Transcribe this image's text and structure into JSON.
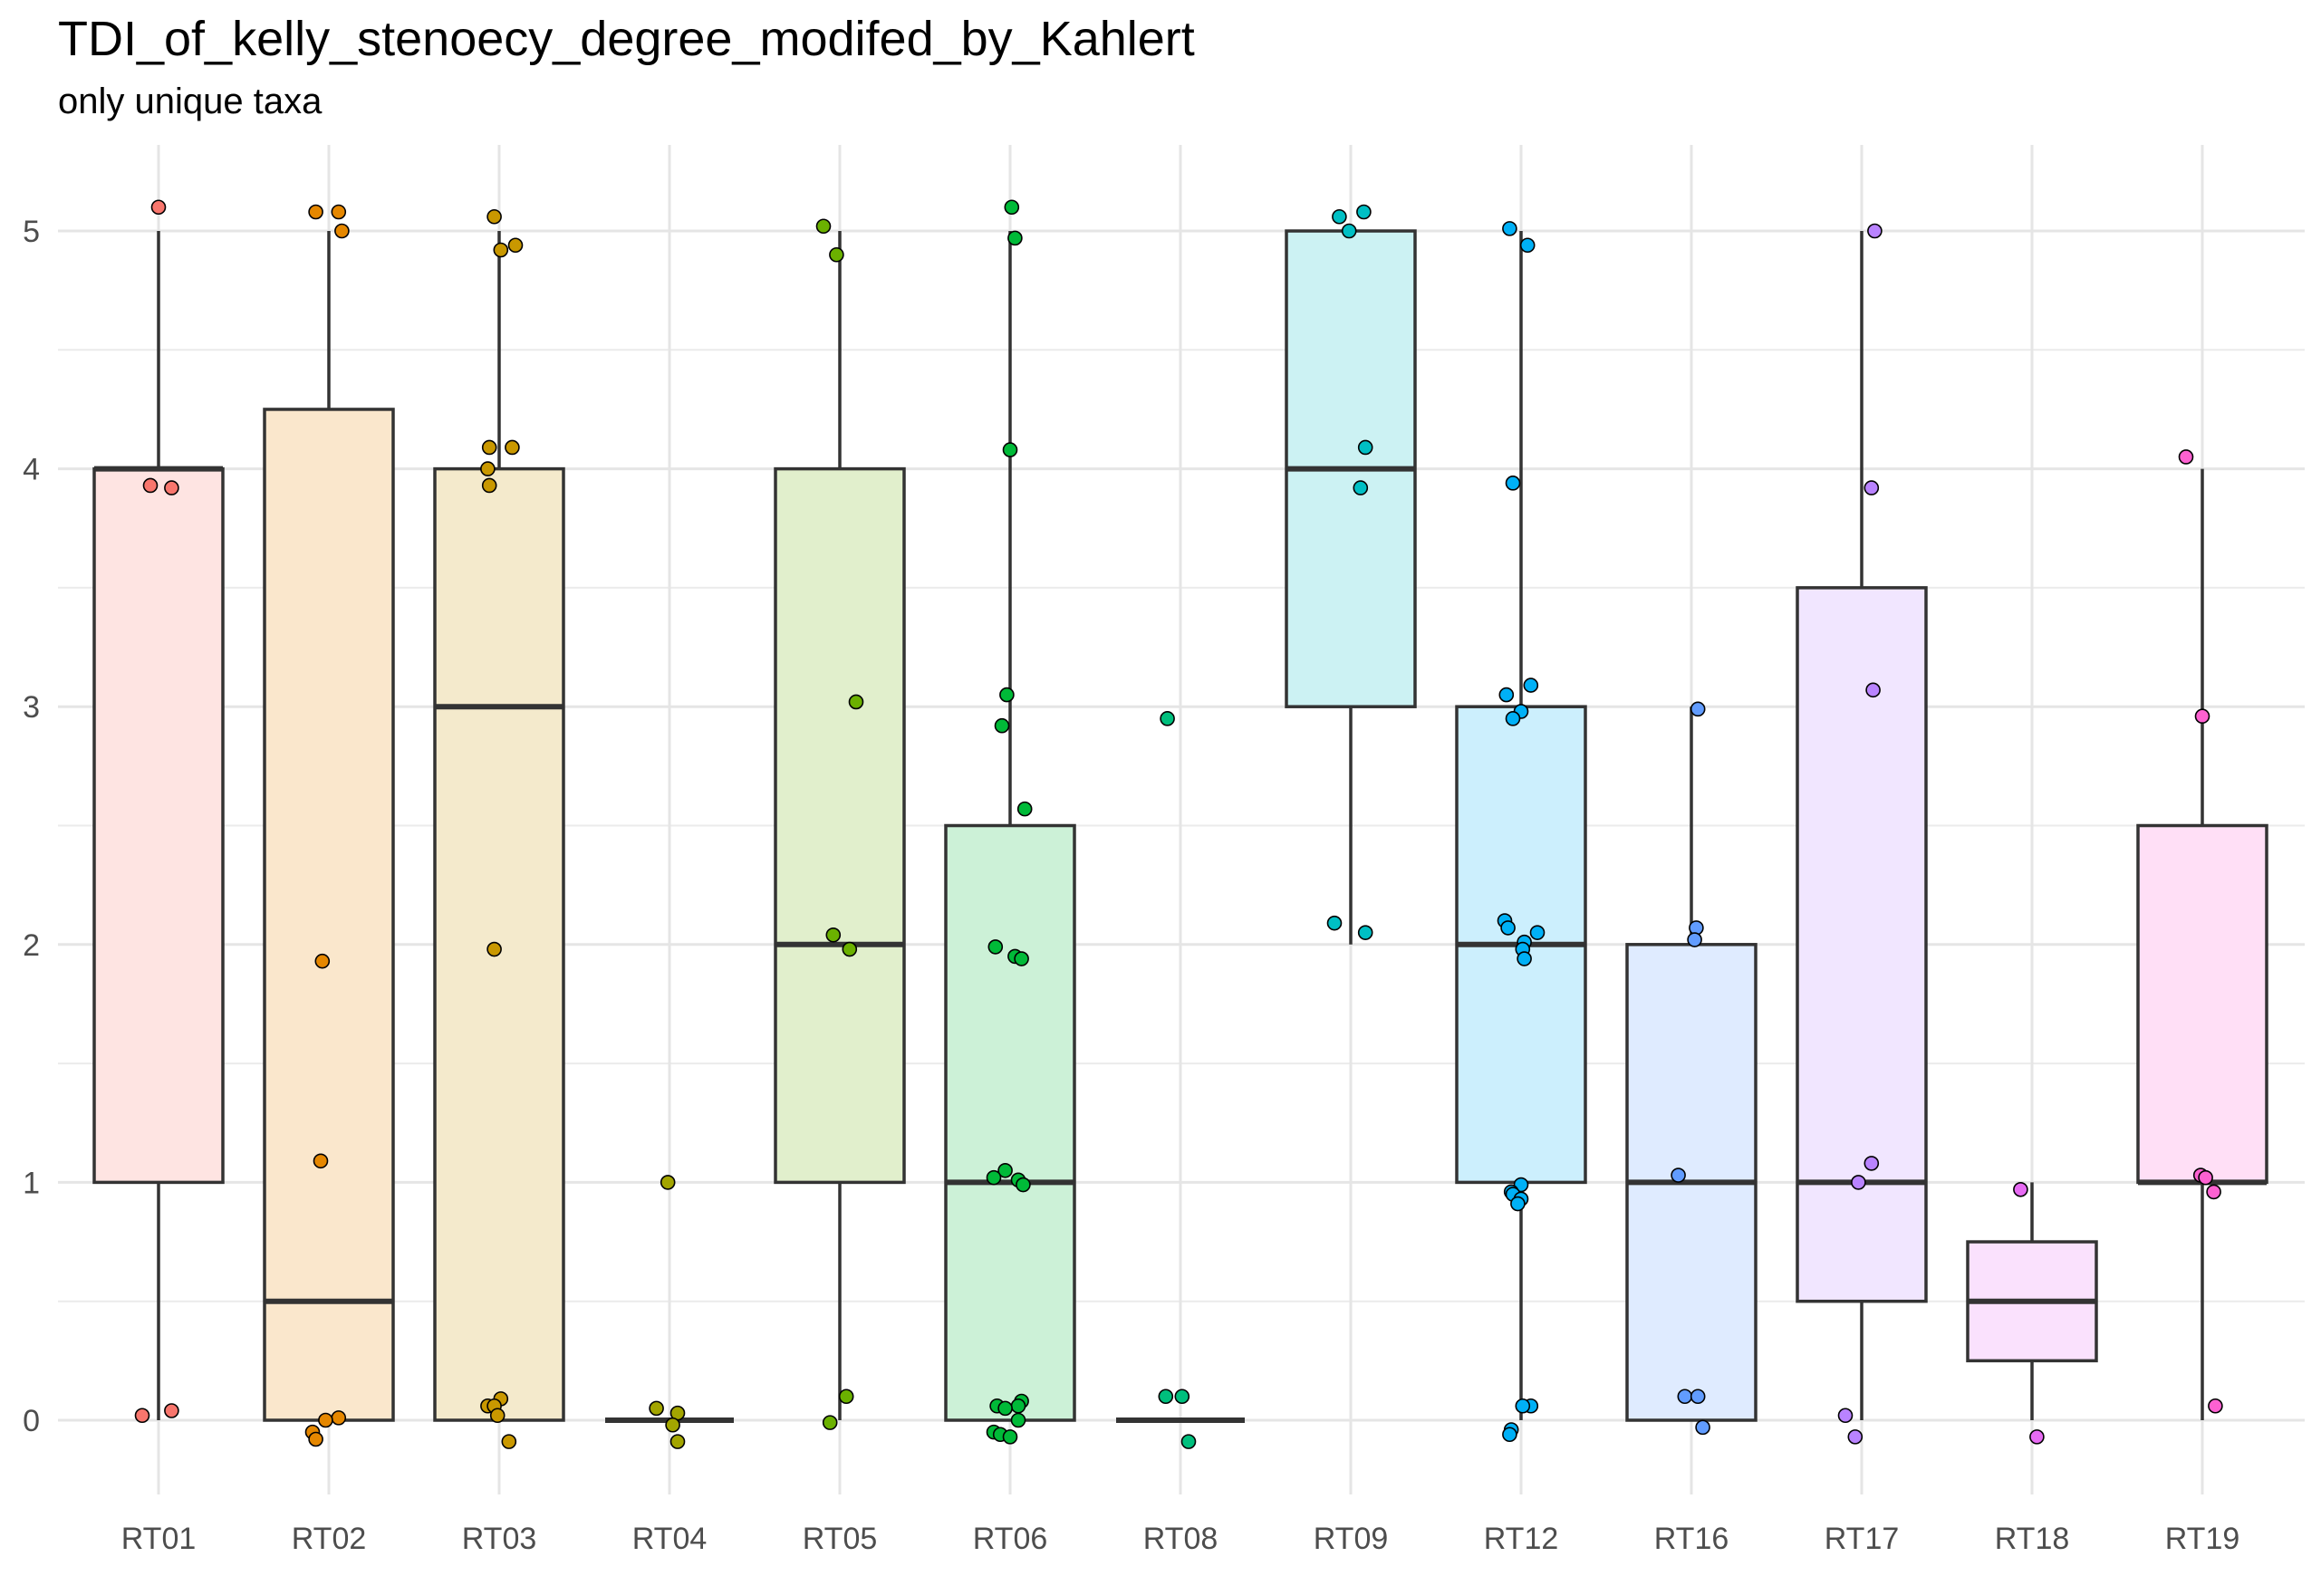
{
  "title": "TDI_of_kelly_stenoecy_degree_modifed_by_Kahlert",
  "subtitle": "only unique taxa",
  "chart_data": {
    "type": "box",
    "xlabel": "",
    "ylabel": "",
    "ylim": [
      -0.35,
      5.35
    ],
    "yticks": [
      "0",
      "1",
      "2",
      "3",
      "4",
      "5"
    ],
    "grid": true,
    "legend": "none",
    "categories": [
      "RT01",
      "RT02",
      "RT03",
      "RT04",
      "RT05",
      "RT06",
      "RT08",
      "RT09",
      "RT12",
      "RT16",
      "RT17",
      "RT18",
      "RT19"
    ],
    "series": [
      {
        "category": "RT01",
        "color": "#F8766D",
        "q1": 1,
        "median": 4,
        "q3": 4,
        "whisker_low": 0,
        "whisker_high": 5,
        "points": [
          [
            5.1,
            0.0
          ],
          [
            3.93,
            -0.05
          ],
          [
            3.92,
            0.08
          ],
          [
            0.02,
            -0.1
          ],
          [
            0.04,
            0.08
          ]
        ]
      },
      {
        "category": "RT02",
        "color": "#E58700",
        "q1": 0,
        "median": 0.5,
        "q3": 4.25,
        "whisker_low": 0,
        "whisker_high": 5,
        "points": [
          [
            5.08,
            -0.08
          ],
          [
            5.08,
            0.06
          ],
          [
            5.0,
            0.08
          ],
          [
            1.93,
            -0.04
          ],
          [
            1.09,
            -0.05
          ],
          [
            0.01,
            0.06
          ],
          [
            0.0,
            -0.02
          ],
          [
            -0.05,
            -0.1
          ],
          [
            -0.08,
            -0.08
          ]
        ]
      },
      {
        "category": "RT03",
        "color": "#C99800",
        "q1": 0,
        "median": 3,
        "q3": 4,
        "whisker_low": 0,
        "whisker_high": 5,
        "points": [
          [
            5.06,
            -0.03
          ],
          [
            4.94,
            0.1
          ],
          [
            4.92,
            0.01
          ],
          [
            4.09,
            -0.06
          ],
          [
            4.09,
            0.08
          ],
          [
            4.0,
            -0.07
          ],
          [
            3.93,
            -0.06
          ],
          [
            1.98,
            -0.03
          ],
          [
            0.09,
            0.01
          ],
          [
            0.06,
            -0.07
          ],
          [
            0.06,
            -0.03
          ],
          [
            0.02,
            -0.01
          ],
          [
            -0.09,
            0.06
          ]
        ]
      },
      {
        "category": "RT04",
        "color": "#A3A500",
        "q1": 0,
        "median": 0,
        "q3": 0,
        "whisker_low": 0,
        "whisker_high": 0,
        "points": [
          [
            1.0,
            -0.01
          ],
          [
            0.05,
            -0.08
          ],
          [
            0.03,
            0.05
          ],
          [
            -0.02,
            0.02
          ],
          [
            -0.09,
            0.05
          ]
        ]
      },
      {
        "category": "RT05",
        "color": "#6BB100",
        "q1": 1,
        "median": 2,
        "q3": 4,
        "whisker_low": 0,
        "whisker_high": 5,
        "points": [
          [
            5.02,
            -0.1
          ],
          [
            4.9,
            -0.02
          ],
          [
            3.02,
            0.1
          ],
          [
            2.04,
            -0.04
          ],
          [
            1.98,
            0.06
          ],
          [
            0.1,
            0.04
          ],
          [
            -0.01,
            -0.06
          ]
        ]
      },
      {
        "category": "RT06",
        "color": "#00BA38",
        "q1": 0,
        "median": 1,
        "q3": 2.5,
        "whisker_low": 0,
        "whisker_high": 5,
        "points": [
          [
            5.1,
            0.01
          ],
          [
            4.97,
            0.03
          ],
          [
            4.08,
            0.0
          ],
          [
            3.05,
            -0.02
          ],
          [
            2.92,
            -0.05
          ],
          [
            2.57,
            0.09
          ],
          [
            1.99,
            -0.09
          ],
          [
            1.95,
            0.03
          ],
          [
            1.94,
            0.07
          ],
          [
            1.05,
            -0.03
          ],
          [
            1.02,
            -0.1
          ],
          [
            1.01,
            0.05
          ],
          [
            0.99,
            0.08
          ],
          [
            0.08,
            0.07
          ],
          [
            0.06,
            -0.08
          ],
          [
            0.06,
            0.05
          ],
          [
            0.05,
            -0.03
          ],
          [
            0.0,
            0.05
          ],
          [
            -0.05,
            -0.1
          ],
          [
            -0.06,
            -0.06
          ],
          [
            -0.07,
            0.0
          ]
        ]
      },
      {
        "category": "RT08",
        "color": "#00BF7D",
        "q1": 0,
        "median": 0,
        "q3": 0,
        "whisker_low": 0,
        "whisker_high": 0,
        "points": [
          [
            2.95,
            -0.08
          ],
          [
            0.1,
            -0.09
          ],
          [
            0.1,
            0.01
          ],
          [
            -0.09,
            0.05
          ]
        ]
      },
      {
        "category": "RT09",
        "color": "#00BFC4",
        "q1": 3,
        "median": 4,
        "q3": 5,
        "whisker_low": 2,
        "whisker_high": 5,
        "points": [
          [
            5.08,
            0.08
          ],
          [
            5.06,
            -0.07
          ],
          [
            5.0,
            -0.01
          ],
          [
            4.09,
            0.09
          ],
          [
            3.92,
            0.06
          ],
          [
            2.09,
            -0.1
          ],
          [
            2.05,
            0.09
          ]
        ]
      },
      {
        "category": "RT12",
        "color": "#00B0F6",
        "q1": 1,
        "median": 2,
        "q3": 3,
        "whisker_low": 0,
        "whisker_high": 5,
        "points": [
          [
            5.01,
            -0.07
          ],
          [
            4.94,
            0.04
          ],
          [
            3.94,
            -0.05
          ],
          [
            3.09,
            0.06
          ],
          [
            3.05,
            -0.09
          ],
          [
            2.98,
            0.0
          ],
          [
            2.95,
            -0.05
          ],
          [
            2.1,
            -0.1
          ],
          [
            2.07,
            -0.08
          ],
          [
            2.05,
            0.1
          ],
          [
            2.01,
            0.02
          ],
          [
            1.98,
            0.01
          ],
          [
            1.94,
            0.02
          ],
          [
            0.99,
            0.0
          ],
          [
            0.96,
            -0.06
          ],
          [
            0.95,
            -0.05
          ],
          [
            0.93,
            0.0
          ],
          [
            0.91,
            -0.02
          ],
          [
            0.06,
            0.06
          ],
          [
            0.06,
            0.01
          ],
          [
            -0.04,
            -0.06
          ],
          [
            -0.06,
            -0.07
          ]
        ]
      },
      {
        "category": "RT16",
        "color": "#619CFF",
        "q1": 0,
        "median": 1,
        "q3": 2,
        "whisker_low": 0,
        "whisker_high": 3,
        "points": [
          [
            2.99,
            0.04
          ],
          [
            2.07,
            0.03
          ],
          [
            2.02,
            0.02
          ],
          [
            1.03,
            -0.08
          ],
          [
            0.1,
            -0.04
          ],
          [
            0.1,
            0.04
          ],
          [
            -0.03,
            0.07
          ]
        ]
      },
      {
        "category": "RT17",
        "color": "#B983FF",
        "q1": 0.5,
        "median": 1,
        "q3": 3.5,
        "whisker_low": 0,
        "whisker_high": 5,
        "points": [
          [
            5.0,
            0.08
          ],
          [
            3.92,
            0.06
          ],
          [
            3.07,
            0.07
          ],
          [
            1.08,
            0.06
          ],
          [
            1.0,
            -0.02
          ],
          [
            0.02,
            -0.1
          ],
          [
            -0.07,
            -0.04
          ]
        ]
      },
      {
        "category": "RT18",
        "color": "#E76BF3",
        "q1": 0.25,
        "median": 0.5,
        "q3": 0.75,
        "whisker_low": 0,
        "whisker_high": 1,
        "points": [
          [
            0.97,
            -0.07
          ],
          [
            -0.07,
            0.03
          ]
        ]
      },
      {
        "category": "RT19",
        "color": "#FD61D1",
        "q1": 1,
        "median": 1,
        "q3": 2.5,
        "whisker_low": 0,
        "whisker_high": 4,
        "points": [
          [
            4.05,
            -0.1
          ],
          [
            2.96,
            0.0
          ],
          [
            1.03,
            -0.01
          ],
          [
            1.02,
            0.02
          ],
          [
            0.96,
            0.07
          ],
          [
            0.06,
            0.08
          ]
        ]
      }
    ]
  }
}
